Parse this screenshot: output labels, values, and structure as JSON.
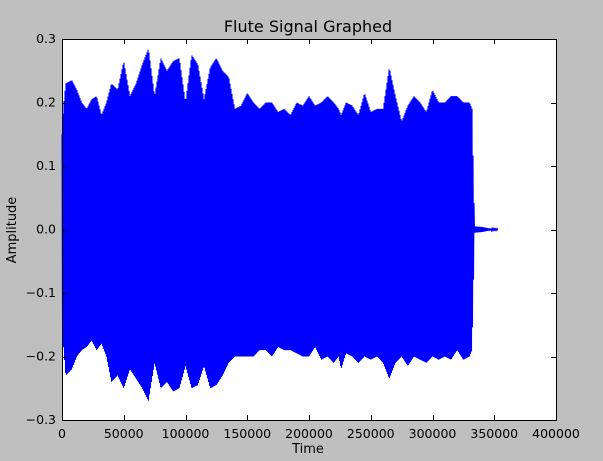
{
  "chart_data": {
    "type": "line",
    "title": "Flute Signal Graphed",
    "xlabel": "Time",
    "ylabel": "Amplitude",
    "xlim": [
      0,
      400000
    ],
    "ylim": [
      -0.3,
      0.3
    ],
    "xticks": [
      0,
      50000,
      100000,
      150000,
      200000,
      250000,
      300000,
      350000,
      400000
    ],
    "yticks": [
      -0.3,
      -0.2,
      -0.1,
      0.0,
      0.1,
      0.2,
      0.3
    ],
    "xtick_labels": [
      "0",
      "50000",
      "100000",
      "150000",
      "200000",
      "250000",
      "300000",
      "350000",
      "400000"
    ],
    "ytick_labels": [
      "−0.3",
      "−0.2",
      "−0.1",
      "0.0",
      "0.1",
      "0.2",
      "0.3"
    ],
    "grid": false,
    "legend": false,
    "series": [
      {
        "color": "#0000ff",
        "envelope_x": [
          0,
          1000,
          3000,
          8000,
          12000,
          16000,
          20000,
          24000,
          28000,
          32000,
          36000,
          40000,
          45000,
          50000,
          55000,
          60000,
          65000,
          70000,
          75000,
          80000,
          85000,
          90000,
          95000,
          100000,
          105000,
          110000,
          115000,
          120000,
          125000,
          130000,
          135000,
          140000,
          145000,
          150000,
          155000,
          160000,
          165000,
          170000,
          175000,
          180000,
          185000,
          190000,
          195000,
          200000,
          205000,
          210000,
          215000,
          220000,
          224000,
          226000,
          230000,
          235000,
          240000,
          245000,
          250000,
          255000,
          260000,
          265000,
          270000,
          275000,
          280000,
          285000,
          290000,
          295000,
          300000,
          305000,
          310000,
          315000,
          320000,
          325000,
          330000,
          332000,
          334000,
          340000,
          345000,
          350000,
          353000
        ],
        "envelope_max": [
          0.15,
          0.19,
          0.23,
          0.235,
          0.22,
          0.2,
          0.19,
          0.205,
          0.21,
          0.18,
          0.2,
          0.23,
          0.22,
          0.265,
          0.21,
          0.23,
          0.26,
          0.285,
          0.21,
          0.27,
          0.25,
          0.265,
          0.27,
          0.2,
          0.275,
          0.26,
          0.205,
          0.255,
          0.27,
          0.25,
          0.24,
          0.19,
          0.195,
          0.215,
          0.2,
          0.19,
          0.2,
          0.2,
          0.185,
          0.19,
          0.18,
          0.2,
          0.195,
          0.21,
          0.195,
          0.2,
          0.21,
          0.2,
          0.19,
          0.18,
          0.2,
          0.195,
          0.18,
          0.215,
          0.185,
          0.19,
          0.19,
          0.255,
          0.21,
          0.17,
          0.195,
          0.21,
          0.2,
          0.185,
          0.22,
          0.2,
          0.2,
          0.21,
          0.21,
          0.2,
          0.2,
          0.19,
          0.005,
          0.004,
          0.002,
          0.001,
          0.001
        ],
        "envelope_min": [
          -0.12,
          -0.18,
          -0.23,
          -0.22,
          -0.2,
          -0.19,
          -0.185,
          -0.175,
          -0.19,
          -0.18,
          -0.2,
          -0.24,
          -0.23,
          -0.25,
          -0.22,
          -0.235,
          -0.25,
          -0.27,
          -0.21,
          -0.25,
          -0.24,
          -0.255,
          -0.25,
          -0.215,
          -0.25,
          -0.245,
          -0.215,
          -0.25,
          -0.245,
          -0.23,
          -0.21,
          -0.2,
          -0.2,
          -0.2,
          -0.2,
          -0.19,
          -0.19,
          -0.2,
          -0.185,
          -0.19,
          -0.19,
          -0.195,
          -0.2,
          -0.2,
          -0.185,
          -0.205,
          -0.2,
          -0.21,
          -0.2,
          -0.22,
          -0.195,
          -0.2,
          -0.21,
          -0.2,
          -0.205,
          -0.2,
          -0.21,
          -0.235,
          -0.21,
          -0.2,
          -0.215,
          -0.2,
          -0.205,
          -0.21,
          -0.2,
          -0.205,
          -0.2,
          -0.205,
          -0.19,
          -0.205,
          -0.2,
          -0.19,
          -0.005,
          -0.004,
          -0.002,
          -0.001,
          -0.001
        ]
      }
    ]
  }
}
